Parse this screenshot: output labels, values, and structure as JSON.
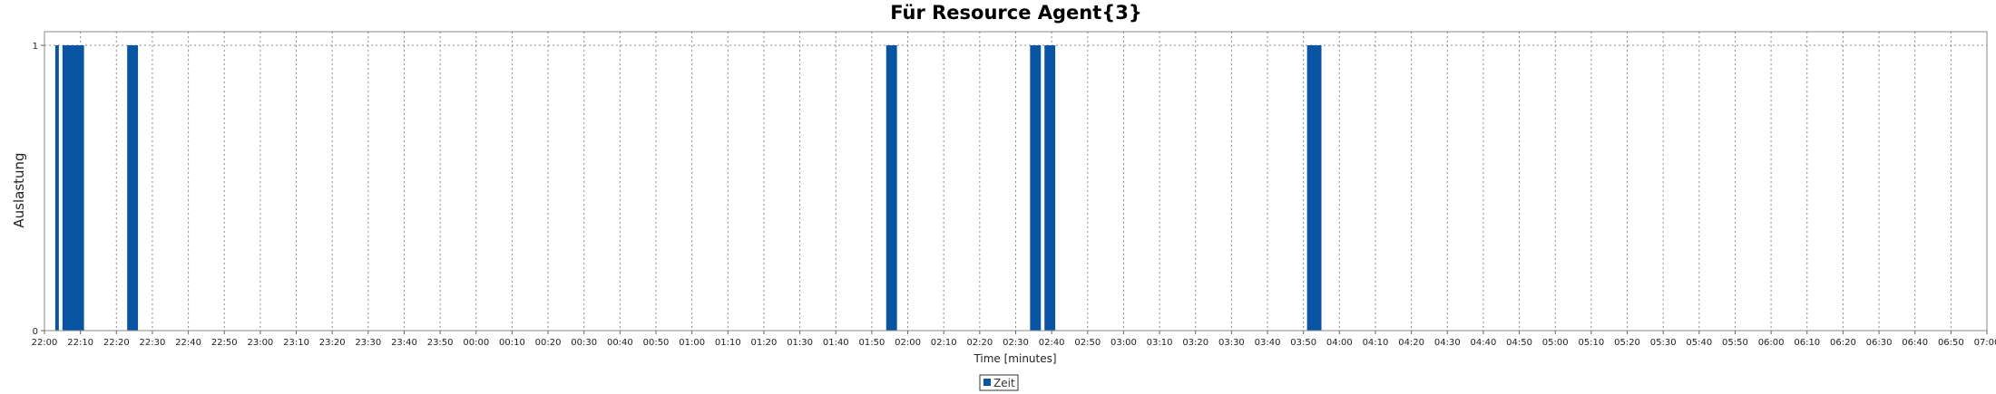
{
  "chart_data": {
    "type": "bar",
    "title": "Für Resource Agent{3}",
    "xlabel": "Time [minutes]",
    "ylabel": "Auslastung",
    "x_start": "22:00",
    "x_end": "07:00",
    "x_ticks": [
      "22:00",
      "22:10",
      "22:20",
      "22:30",
      "22:40",
      "22:50",
      "23:00",
      "23:10",
      "23:20",
      "23:30",
      "23:40",
      "23:50",
      "00:00",
      "00:10",
      "00:20",
      "00:30",
      "00:40",
      "00:50",
      "01:00",
      "01:10",
      "01:20",
      "01:30",
      "01:40",
      "01:50",
      "02:00",
      "02:10",
      "02:20",
      "02:30",
      "02:40",
      "02:50",
      "03:00",
      "03:10",
      "03:20",
      "03:30",
      "03:40",
      "03:50",
      "04:00",
      "04:10",
      "04:20",
      "04:30",
      "04:40",
      "04:50",
      "05:00",
      "05:10",
      "05:20",
      "05:30",
      "05:40",
      "05:50",
      "06:00",
      "06:10",
      "06:20",
      "06:30",
      "06:40",
      "06:50",
      "07:00"
    ],
    "y_ticks": [
      "0",
      "1"
    ],
    "ylim": [
      0,
      1
    ],
    "grid": true,
    "legend_position": "bottom-center",
    "colors": {
      "bar": "#0A55A3",
      "grid": "#8a8a8a",
      "frame": "#888888"
    },
    "series": [
      {
        "name": "Zeit",
        "bars": [
          {
            "start": "22:03",
            "end": "22:04",
            "value": 1
          },
          {
            "start": "22:05",
            "end": "22:11",
            "value": 1
          },
          {
            "start": "22:23",
            "end": "22:26",
            "value": 1
          },
          {
            "start": "01:54",
            "end": "01:57",
            "value": 1
          },
          {
            "start": "02:34",
            "end": "02:37",
            "value": 1
          },
          {
            "start": "02:38",
            "end": "02:41",
            "value": 1
          },
          {
            "start": "03:51",
            "end": "03:55",
            "value": 1
          }
        ]
      }
    ]
  }
}
